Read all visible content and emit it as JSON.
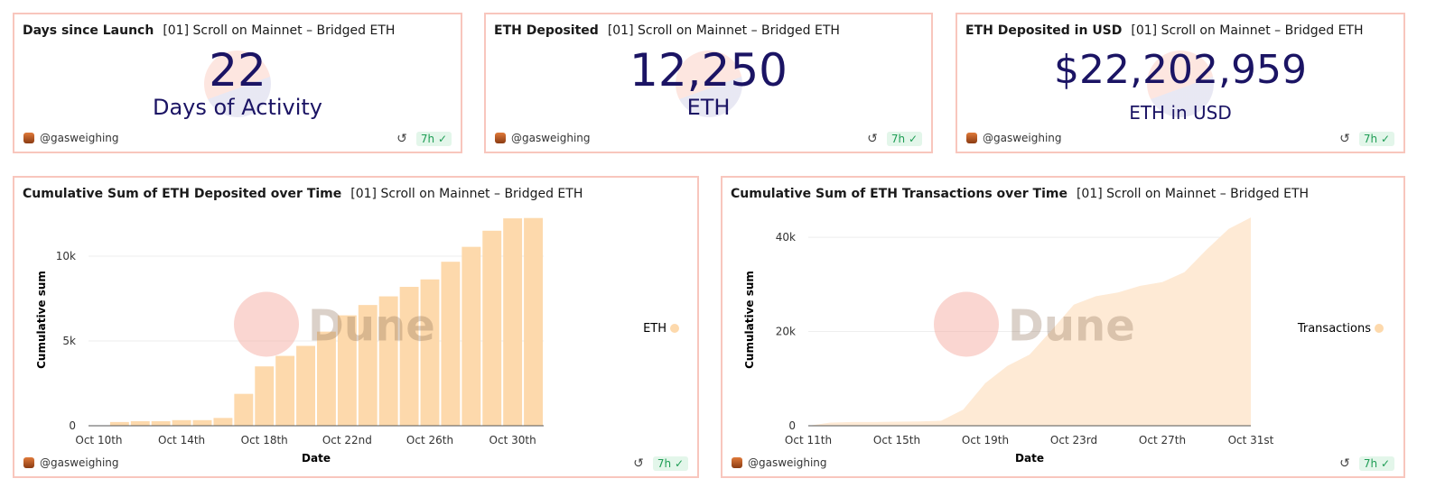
{
  "query_name": "[01] Scroll on Mainnet – Bridged ETH",
  "author": "@gasweighing",
  "freshness": "7h",
  "counters": [
    {
      "title": "Days since Launch",
      "value": "22",
      "label": "Days of Activity"
    },
    {
      "title": "ETH Deposited",
      "value": "12,250",
      "label": "ETH"
    },
    {
      "title": "ETH Deposited in USD",
      "value": "$22,202,959",
      "label": "ETH in USD"
    }
  ],
  "watermark": "Dune",
  "colors": {
    "series": "#fdd9ac",
    "area": "#feead5",
    "counter": "#1b1464",
    "border": "#f8c6bd",
    "badge": "#1f9d55"
  },
  "chart_data": [
    {
      "type": "bar",
      "title": "Cumulative Sum of ETH Deposited over Time",
      "xlabel": "Date",
      "ylabel": "Cumulative sum",
      "legend": "right",
      "grid": true,
      "ylim": [
        0,
        12500
      ],
      "yticks": [
        0,
        5000,
        10000
      ],
      "ytick_labels": [
        "0",
        "5k",
        "10k"
      ],
      "xtick_labels": [
        "Oct 10th",
        "Oct 14th",
        "Oct 18th",
        "Oct 22nd",
        "Oct 26th",
        "Oct 30th"
      ],
      "categories": [
        "2023-10-10",
        "2023-10-11",
        "2023-10-12",
        "2023-10-13",
        "2023-10-14",
        "2023-10-15",
        "2023-10-16",
        "2023-10-17",
        "2023-10-18",
        "2023-10-19",
        "2023-10-20",
        "2023-10-21",
        "2023-10-22",
        "2023-10-23",
        "2023-10-24",
        "2023-10-25",
        "2023-10-26",
        "2023-10-27",
        "2023-10-28",
        "2023-10-29",
        "2023-10-30",
        "2023-10-31"
      ],
      "series": [
        {
          "name": "ETH",
          "values": [
            20,
            220,
            270,
            270,
            330,
            330,
            460,
            1880,
            3500,
            4120,
            4710,
            5550,
            6510,
            7120,
            7630,
            8190,
            8630,
            9670,
            10550,
            11500,
            12230,
            12250
          ]
        }
      ]
    },
    {
      "type": "area",
      "title": "Cumulative Sum of ETH Transactions over Time",
      "xlabel": "Date",
      "ylabel": "Cumulative sum",
      "legend": "right",
      "grid": true,
      "ylim": [
        0,
        45000
      ],
      "yticks": [
        0,
        20000,
        40000
      ],
      "ytick_labels": [
        "0",
        "20k",
        "40k"
      ],
      "xtick_labels": [
        "Oct 11th",
        "Oct 15th",
        "Oct 19th",
        "Oct 23rd",
        "Oct 27th",
        "Oct 31st"
      ],
      "categories": [
        "2023-10-11",
        "2023-10-12",
        "2023-10-13",
        "2023-10-14",
        "2023-10-15",
        "2023-10-16",
        "2023-10-17",
        "2023-10-18",
        "2023-10-19",
        "2023-10-20",
        "2023-10-21",
        "2023-10-22",
        "2023-10-23",
        "2023-10-24",
        "2023-10-25",
        "2023-10-26",
        "2023-10-27",
        "2023-10-28",
        "2023-10-29",
        "2023-10-30",
        "2023-10-31"
      ],
      "series": [
        {
          "name": "Transactions",
          "values": [
            0,
            660,
            800,
            800,
            860,
            920,
            1060,
            3430,
            9040,
            12700,
            15100,
            20300,
            25700,
            27500,
            28300,
            29700,
            30500,
            32600,
            37400,
            41800,
            44200
          ]
        }
      ]
    }
  ]
}
